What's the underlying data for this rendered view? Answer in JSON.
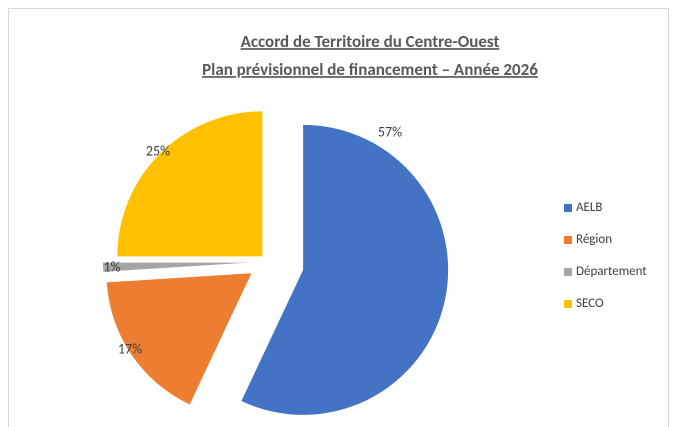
{
  "chart_data": {
    "type": "pie",
    "title": "Accord de Territoire du Centre-Ouest",
    "subtitle": "Plan prévisionnel de financement – Année 2026",
    "categories": [
      "AELB",
      "Région",
      "Département",
      "SECO"
    ],
    "values": [
      57,
      17,
      1,
      25
    ],
    "value_labels": [
      "57%",
      "17%",
      "1%",
      "25%"
    ],
    "colors": [
      "#4472c4",
      "#ed7d31",
      "#a5a5a5",
      "#ffc000"
    ],
    "legend": "right"
  }
}
